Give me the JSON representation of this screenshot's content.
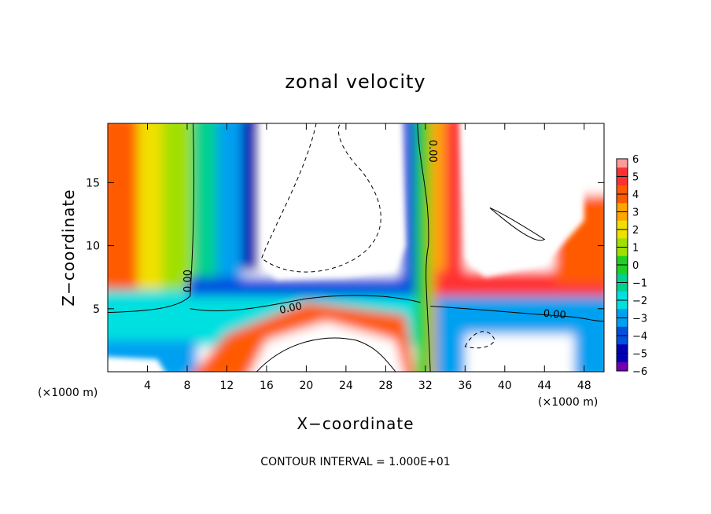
{
  "chart_data": {
    "type": "heatmap",
    "title": "zonal velocity",
    "xlabel": "X−coordinate",
    "ylabel": "Z−coordinate",
    "x_unit_note": "(×1000 m)",
    "y_unit_note": "(×1000 m)",
    "xlim": [
      0,
      50
    ],
    "ylim": [
      0,
      19.7
    ],
    "x_ticks": [
      4,
      8,
      12,
      16,
      20,
      24,
      28,
      32,
      36,
      40,
      44,
      48
    ],
    "x_tick_labels": [
      "4",
      "8",
      "12",
      "16",
      "20",
      "24",
      "28",
      "32",
      "36",
      "40",
      "44",
      "48"
    ],
    "y_ticks": [
      5,
      10,
      15
    ],
    "y_tick_labels": [
      "5",
      "10",
      "15"
    ],
    "contour_interval_text": "CONTOUR INTERVAL = 1.000E+01",
    "contour_label": "0.00",
    "colorbar": {
      "levels": [
        6,
        5,
        4,
        3,
        2,
        1,
        0,
        -1,
        -2,
        -3,
        -4,
        -5,
        -6
      ],
      "labels": [
        "6",
        "5",
        "4",
        "3",
        "2",
        "1",
        "0",
        "−1",
        "−2",
        "−3",
        "−4",
        "−5",
        "−6"
      ],
      "colors": [
        "#ff9a9a",
        "#ff3030",
        "#ff5a00",
        "#ffa500",
        "#f0e000",
        "#a0e000",
        "#20d020",
        "#00d090",
        "#00e0e0",
        "#00a0f0",
        "#0050e0",
        "#0000b0",
        "#7000b0"
      ]
    },
    "description_values": {
      "zero_contour_interface_z": 6,
      "strong_positive_regions_x": [
        [
          0,
          5
        ],
        [
          33,
          36
        ],
        [
          44,
          50
        ]
      ],
      "strong_negative_regions_x": [
        [
          14,
          16
        ],
        [
          30,
          32
        ]
      ]
    }
  }
}
